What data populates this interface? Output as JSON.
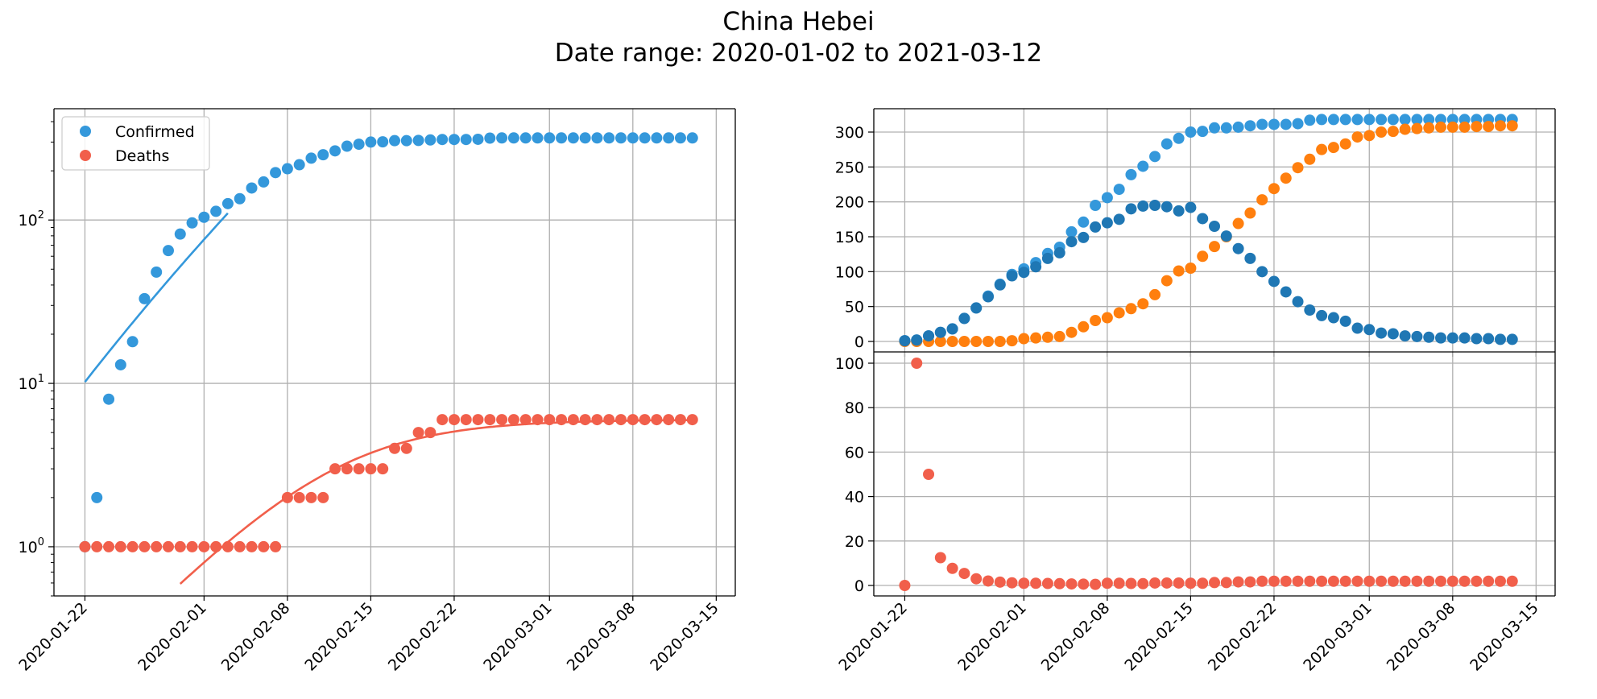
{
  "figure": {
    "title_line1": "China Hebei",
    "title_line2": "Date range: 2020-01-02 to 2021-03-12"
  },
  "colors": {
    "confirmed": "#3498db",
    "deaths": "#f15f4b",
    "active": "#1f77b4",
    "recovered": "#ff7f0e",
    "grid": "#b0b0b0"
  },
  "chart_data": [
    {
      "type": "scatter",
      "panel": "left",
      "yscale": "log",
      "x_ticks": [
        "2020-01-22",
        "2020-02-01",
        "2020-02-08",
        "2020-02-15",
        "2020-02-22",
        "2020-03-01",
        "2020-03-08",
        "2020-03-15"
      ],
      "y_ticks": [
        "10^0",
        "10^1",
        "10^2"
      ],
      "ylim": [
        0.5,
        480
      ],
      "grid": true,
      "legend_position": "upper-left",
      "x": [
        "2020-01-22",
        "2020-01-23",
        "2020-01-24",
        "2020-01-25",
        "2020-01-26",
        "2020-01-27",
        "2020-01-28",
        "2020-01-29",
        "2020-01-30",
        "2020-01-31",
        "2020-02-01",
        "2020-02-02",
        "2020-02-03",
        "2020-02-04",
        "2020-02-05",
        "2020-02-06",
        "2020-02-07",
        "2020-02-08",
        "2020-02-09",
        "2020-02-10",
        "2020-02-11",
        "2020-02-12",
        "2020-02-13",
        "2020-02-14",
        "2020-02-15",
        "2020-02-16",
        "2020-02-17",
        "2020-02-18",
        "2020-02-19",
        "2020-02-20",
        "2020-02-21",
        "2020-02-22",
        "2020-02-23",
        "2020-02-24",
        "2020-02-25",
        "2020-02-26",
        "2020-02-27",
        "2020-02-28",
        "2020-02-29",
        "2020-03-01",
        "2020-03-02",
        "2020-03-03",
        "2020-03-04",
        "2020-03-05",
        "2020-03-06",
        "2020-03-07",
        "2020-03-08",
        "2020-03-09",
        "2020-03-10",
        "2020-03-11",
        "2020-03-12",
        "2020-03-13"
      ],
      "series": [
        {
          "name": "Confirmed",
          "values": [
            1,
            2,
            8,
            13,
            18,
            33,
            48,
            65,
            82,
            96,
            104,
            113,
            126,
            135,
            157,
            171,
            195,
            206,
            218,
            239,
            251,
            265,
            283,
            291,
            300,
            301,
            306,
            306,
            307,
            309,
            311,
            311,
            311,
            312,
            317,
            318,
            318,
            318,
            318,
            318,
            318,
            318,
            318,
            318,
            318,
            318,
            318,
            318,
            318,
            318,
            318,
            318
          ]
        },
        {
          "name": "Deaths",
          "values": [
            1,
            1,
            1,
            1,
            1,
            1,
            1,
            1,
            1,
            1,
            1,
            1,
            1,
            1,
            1,
            1,
            1,
            2,
            2,
            2,
            2,
            3,
            3,
            3,
            3,
            3,
            4,
            4,
            5,
            5,
            6,
            6,
            6,
            6,
            6,
            6,
            6,
            6,
            6,
            6,
            6,
            6,
            6,
            6,
            6,
            6,
            6,
            6,
            6,
            6,
            6,
            6
          ]
        }
      ],
      "fit_curves": [
        {
          "series": "Confirmed",
          "x_start": "2020-01-22",
          "x_end": "2020-02-03",
          "y_start": 10.2,
          "y_end": 110
        },
        {
          "series": "Deaths",
          "x_start": "2020-01-30",
          "x_end": "2020-03-13",
          "y_start": 0.5,
          "y_end": 6.0
        }
      ]
    },
    {
      "type": "scatter",
      "panel": "top-right",
      "x_ticks": [],
      "y_ticks": [
        "0",
        "50",
        "100",
        "150",
        "200",
        "250",
        "300"
      ],
      "ylim": [
        -12,
        335
      ],
      "grid": true,
      "series": [
        {
          "color": "confirmed",
          "values": [
            1,
            2,
            8,
            13,
            18,
            33,
            48,
            65,
            82,
            96,
            104,
            113,
            126,
            135,
            157,
            171,
            195,
            206,
            218,
            239,
            251,
            265,
            283,
            291,
            300,
            301,
            306,
            306,
            307,
            309,
            311,
            311,
            311,
            312,
            317,
            318,
            318,
            318,
            318,
            318,
            318,
            318,
            318,
            318,
            318,
            318,
            318,
            318,
            318,
            318,
            318,
            318
          ]
        },
        {
          "color": "active",
          "values": [
            1,
            2,
            8,
            13,
            18,
            33,
            48,
            64,
            81,
            94,
            99,
            107,
            119,
            127,
            143,
            149,
            164,
            170,
            175,
            190,
            194,
            195,
            193,
            187,
            192,
            176,
            165,
            151,
            133,
            119,
            100,
            86,
            71,
            57,
            45,
            37,
            34,
            29,
            19,
            17,
            12,
            11,
            8,
            7,
            6,
            5,
            5,
            5,
            4,
            4,
            3,
            3
          ]
        },
        {
          "color": "recovered",
          "values": [
            0,
            0,
            0,
            0,
            0,
            0,
            0,
            0,
            0,
            1,
            4,
            5,
            6,
            7,
            13,
            21,
            30,
            34,
            41,
            47,
            54,
            67,
            87,
            101,
            105,
            122,
            136,
            150,
            169,
            184,
            203,
            219,
            234,
            249,
            261,
            275,
            278,
            283,
            293,
            295,
            300,
            301,
            304,
            305,
            306,
            307,
            307,
            307,
            308,
            308,
            309,
            309
          ]
        }
      ]
    },
    {
      "type": "scatter",
      "panel": "bottom-right",
      "x_ticks": [
        "2020-01-22",
        "2020-02-01",
        "2020-02-08",
        "2020-02-15",
        "2020-02-22",
        "2020-03-01",
        "2020-03-08",
        "2020-03-15"
      ],
      "y_ticks": [
        "0",
        "20",
        "40",
        "60",
        "80",
        "100"
      ],
      "ylim": [
        -5,
        105
      ],
      "grid": true,
      "series": [
        {
          "color": "deaths",
          "values": [
            0,
            100,
            50,
            12.5,
            7.7,
            5.4,
            3,
            2,
            1.5,
            1.2,
            1,
            1,
            0.9,
            0.8,
            0.7,
            0.6,
            0.5,
            1,
            1,
            0.9,
            0.8,
            1.1,
            1.1,
            1.1,
            1,
            1,
            1.3,
            1.3,
            1.6,
            1.6,
            1.9,
            1.9,
            1.9,
            1.9,
            1.9,
            1.9,
            1.9,
            1.9,
            1.9,
            1.9,
            1.9,
            1.9,
            1.9,
            1.9,
            1.9,
            1.9,
            1.9,
            1.9,
            1.9,
            1.9,
            1.9,
            1.9
          ]
        }
      ]
    }
  ],
  "legend": {
    "items": [
      {
        "label": "Confirmed",
        "color": "confirmed"
      },
      {
        "label": "Deaths",
        "color": "deaths"
      }
    ]
  }
}
